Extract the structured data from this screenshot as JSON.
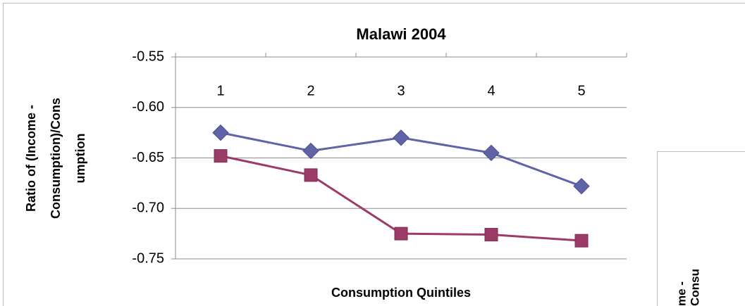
{
  "chart_data": {
    "type": "line",
    "title": "Malawi 2004",
    "y_label": [
      "Ratio of (Income -",
      "Consumption)/Cons",
      "umption"
    ],
    "x_label": "Consumption Quintiles",
    "categories": [
      "1",
      "2",
      "3",
      "4",
      "5"
    ],
    "series": [
      {
        "color": "#5f63a8",
        "marker": "diamond",
        "values": [
          -0.625,
          -0.643,
          -0.63,
          -0.645,
          -0.678
        ]
      },
      {
        "color": "#9c3a68",
        "marker": "square",
        "values": [
          -0.648,
          -0.667,
          -0.725,
          -0.726,
          -0.732
        ]
      }
    ],
    "ylim": [
      -0.75,
      -0.55
    ],
    "yticks": [
      -0.75,
      {
        "value": -0.7,
        "label": "-0.70"
      },
      -0.65,
      {
        "value": -0.6,
        "label": "-0.60"
      },
      -0.55
    ],
    "grid": true,
    "x_axis_position": "top",
    "second_chart_fragment": [
      "me -",
      "Consu"
    ]
  }
}
